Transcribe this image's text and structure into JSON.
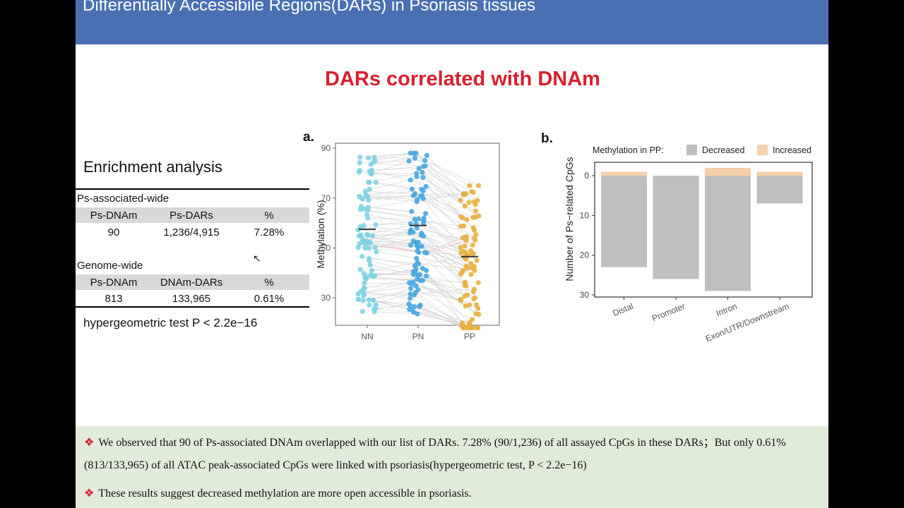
{
  "header": {
    "title": "Differentially Accessibile Regions(DARs) in Psoriasis tissues"
  },
  "subtitle": "DARs correlated with DNAm",
  "enrichment": {
    "title": "Enrichment analysis",
    "section1_label": "Ps-associated-wide",
    "section1_headers": [
      "Ps-DNAm",
      "Ps-DARs",
      "%"
    ],
    "section1_values": [
      "90",
      "1,236/4,915",
      "7.28%"
    ],
    "section2_label": "Genome-wide",
    "section2_headers": [
      "Ps-DNAm",
      "DNAm-DARs",
      "%"
    ],
    "section2_values": [
      "813",
      "133,965",
      "0.61%"
    ],
    "test_text": "hypergeometric test  P < 2.2e−16"
  },
  "plot_a": {
    "letter": "a."
  },
  "plot_b": {
    "letter": "b."
  },
  "chart_data": [
    {
      "type": "scatter",
      "ylabel": "Methylation (%)",
      "categories": [
        "NN",
        "PN",
        "PP"
      ],
      "yticks": [
        "30",
        "50",
        "70",
        "90"
      ],
      "ylim": [
        19,
        92
      ],
      "medians": [
        57.5,
        59,
        46.5
      ],
      "colors": [
        "#7fd3e3",
        "#4aa7e0",
        "#e8b044"
      ],
      "grid": false
    },
    {
      "type": "bar",
      "ylabel": "Number of Ps−related CpGs",
      "legend_title": "Methylation in PP:",
      "categories": [
        "Distal",
        "Promoter",
        "Intron",
        "Exon/UTR/Downstream"
      ],
      "yticks": [
        "0",
        "10",
        "20",
        "30"
      ],
      "ylim": [
        0,
        30
      ],
      "y_reversed": true,
      "series": [
        {
          "name": "Decreased",
          "color": "#bfbfbf",
          "values": [
            23,
            26,
            29,
            7
          ]
        },
        {
          "name": "Increased",
          "color": "#f6cfab",
          "values": [
            1,
            0,
            2,
            1
          ]
        }
      ],
      "legend_position": "top"
    }
  ],
  "bullets": [
    "We observed that 90 of Ps-associated DNAm overlapped with our list of DARs. 7.28% (90/1,236) of all assayed CpGs in these DARs；But only 0.61% (813/133,965) of all ATAC peak-associated CpGs were linked with psoriasis(hypergeometric test, P < 2.2e−16)",
    "These results suggest decreased methylation are more open accessible in psoriasis."
  ]
}
